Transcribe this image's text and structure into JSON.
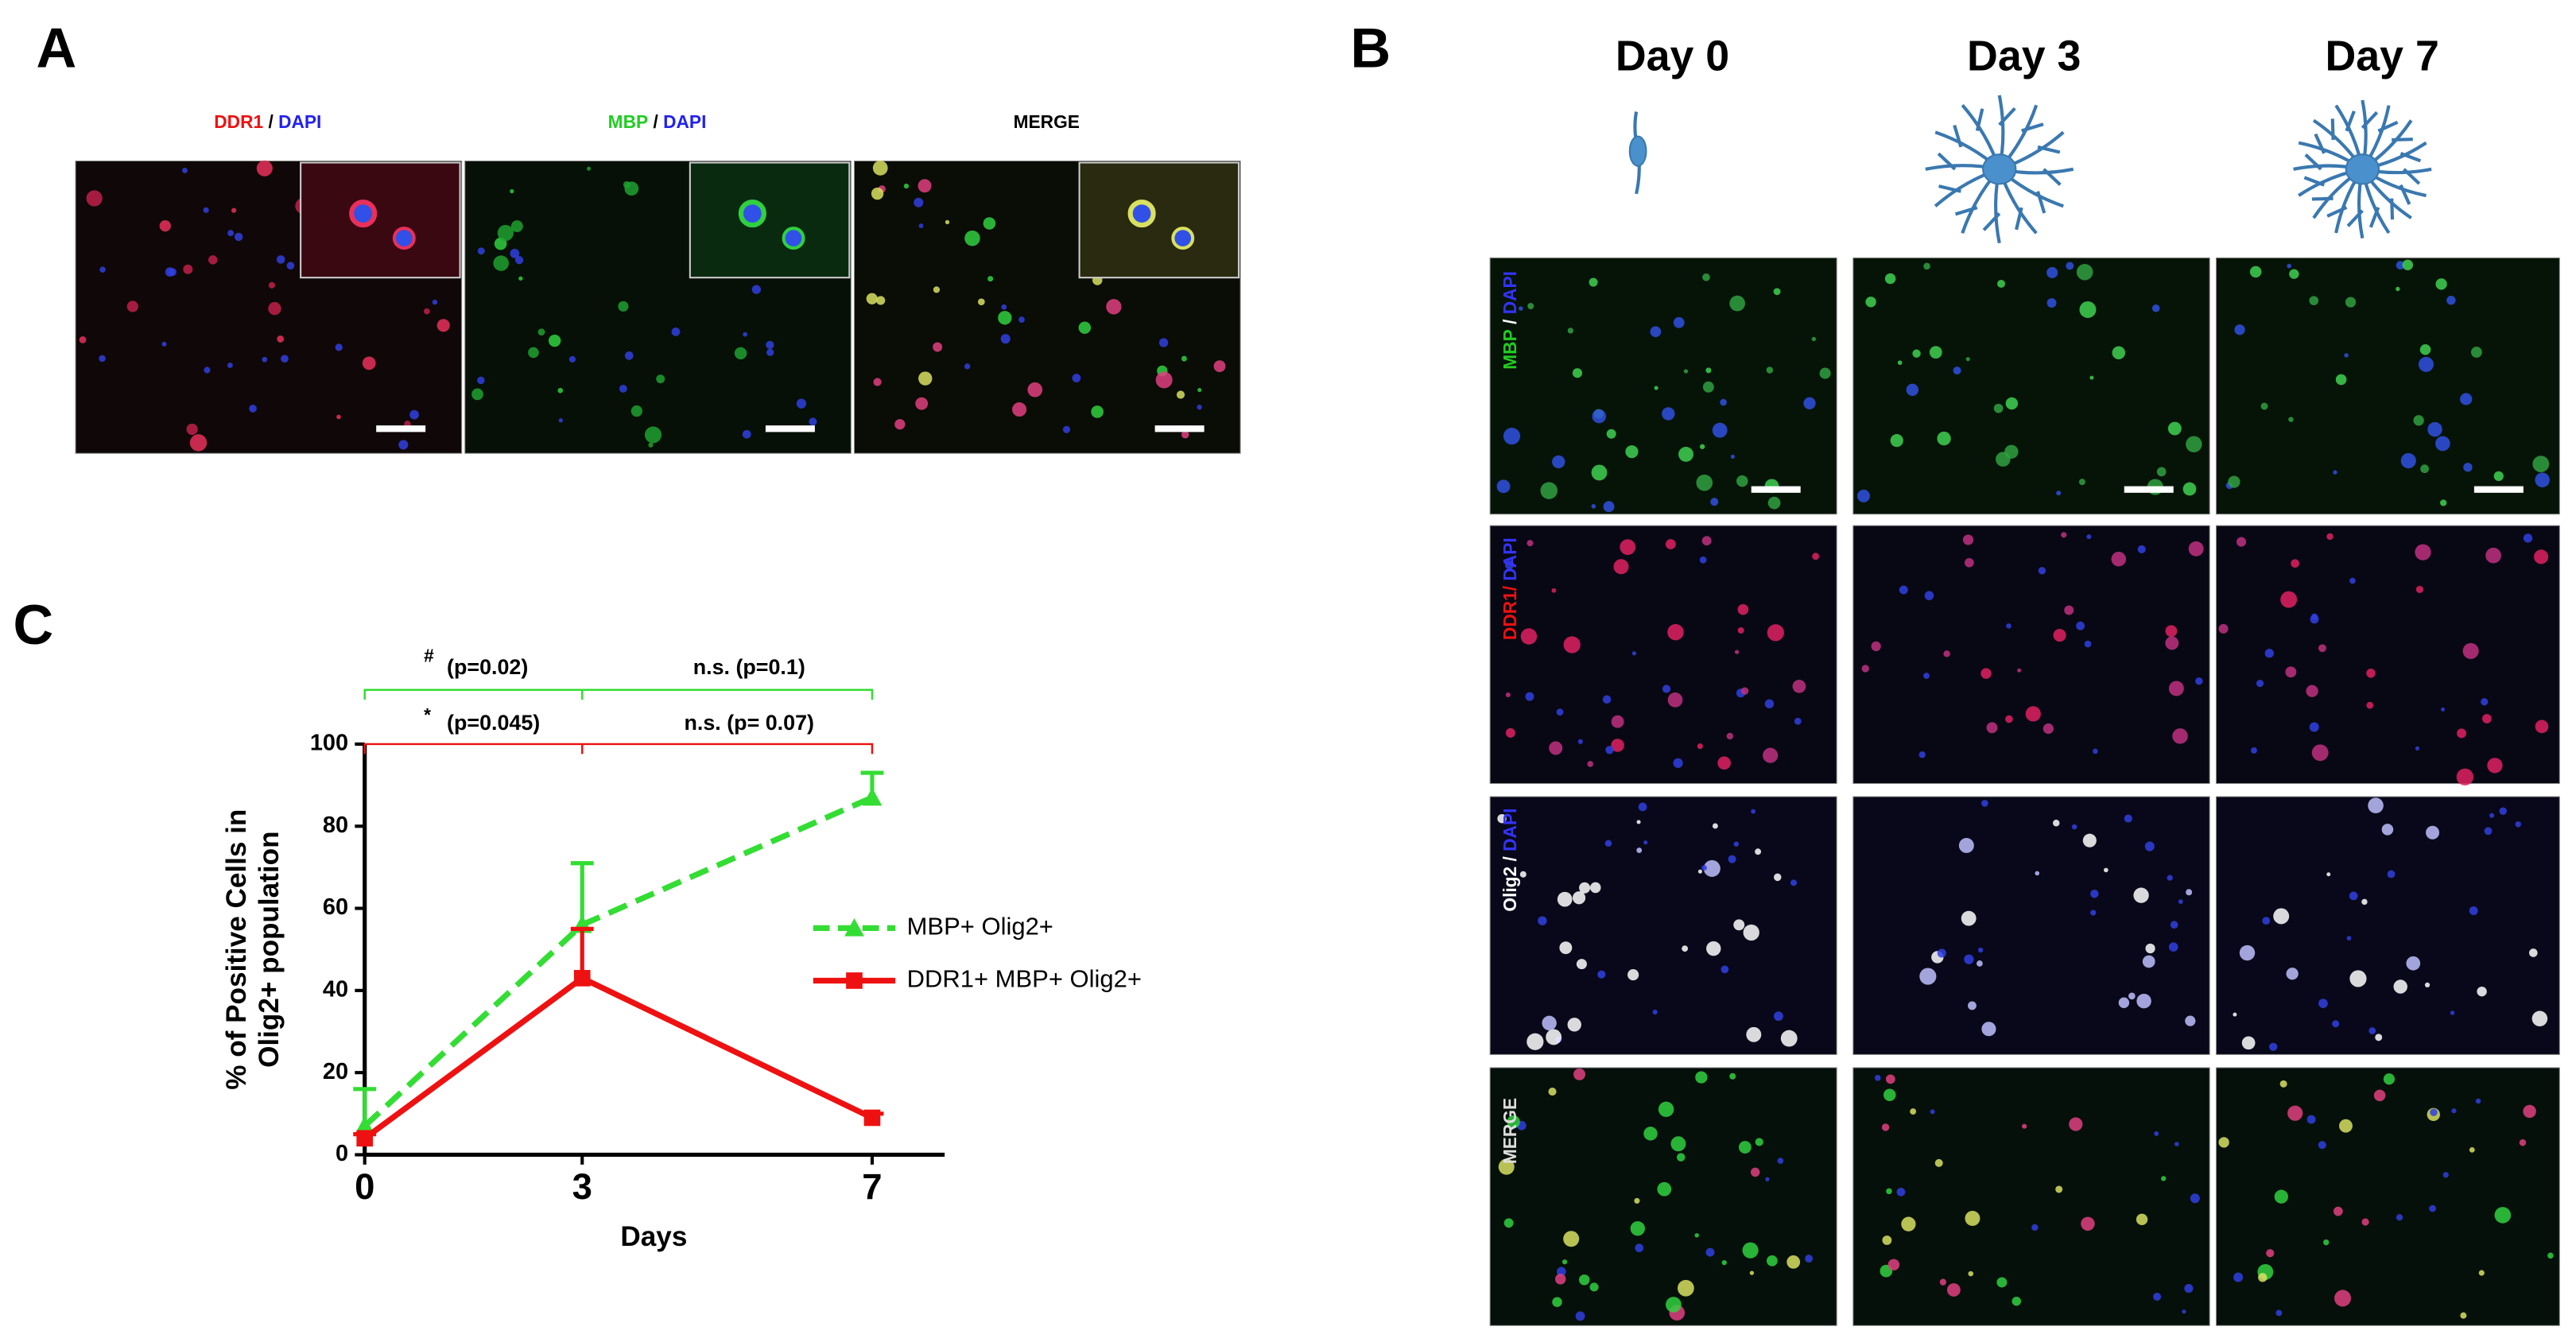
{
  "panel_a": {
    "label": "A",
    "channels": [
      [
        "DDR1",
        "/",
        "DAPI"
      ],
      [
        "MBP",
        "/",
        "DAPI"
      ],
      [
        "MERGE"
      ]
    ]
  },
  "panel_b": {
    "label": "B",
    "days": [
      "Day 0",
      "Day 3",
      "Day 7"
    ],
    "rows": [
      [
        "MBP",
        "/",
        "DAPI"
      ],
      [
        "DDR1/",
        "DAPI"
      ],
      [
        "Olig2",
        "/",
        "DAPI"
      ],
      [
        "MERGE"
      ]
    ]
  },
  "panel_c": {
    "label": "C"
  },
  "chart_data": {
    "type": "line",
    "x": [
      0,
      3,
      7
    ],
    "xlim": [
      0,
      8
    ],
    "xticks": [
      0,
      3,
      7
    ],
    "ylim": [
      0,
      100
    ],
    "yticks": [
      0,
      20,
      40,
      60,
      80,
      100
    ],
    "xlabel": "Days",
    "ylabel": [
      "% of Positive Cells in",
      "Olig2+ population"
    ],
    "annotations": [
      "#",
      "(p=0.02)",
      "n.s. (p=0.1)",
      "*",
      "(p=0.045)",
      "n.s. (p= 0.07)"
    ],
    "series": [
      {
        "name": "MBP+ Olig2+",
        "color": "#33dd33",
        "marker": "triangle",
        "dashed": true,
        "values": [
          7,
          56,
          87
        ],
        "errors": [
          9,
          15,
          6
        ]
      },
      {
        "name": "DDR1+ MBP+ Olig2+",
        "color": "#ee1111",
        "marker": "square",
        "dashed": false,
        "values": [
          4,
          43,
          9
        ],
        "errors": [
          1,
          12,
          1
        ]
      }
    ]
  }
}
